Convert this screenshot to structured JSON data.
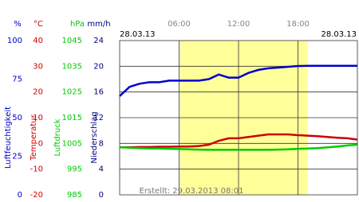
{
  "chart_data": {
    "type": "line",
    "date_left": "28.03.13",
    "date_right": "28.03.13",
    "footer": "Erstellt: 29.03.2013 08:01",
    "x": [
      0,
      1,
      2,
      3,
      4,
      5,
      6,
      7,
      8,
      9,
      10,
      11,
      12,
      13,
      14,
      15,
      16,
      17,
      18,
      19,
      20,
      21,
      22,
      23,
      24
    ],
    "xlim": [
      0,
      24
    ],
    "xticks": [
      {
        "value": 6,
        "label": "06:00"
      },
      {
        "value": 12,
        "label": "12:00"
      },
      {
        "value": 18,
        "label": "18:00"
      }
    ],
    "daylight": [
      6.1,
      19.0
    ],
    "grid": true,
    "axes": [
      {
        "unit": "%",
        "label": "Luftfeuchtigkeit",
        "color": "#0000cc",
        "ylim": [
          0,
          100
        ],
        "yticks": [
          0,
          25,
          50,
          75,
          100
        ]
      },
      {
        "unit": "°C",
        "label": "Temperatur",
        "color": "#cc0000",
        "ylim": [
          -20,
          40
        ],
        "yticks": [
          -20,
          -10,
          0,
          10,
          20,
          30,
          40
        ]
      },
      {
        "unit": "hPa",
        "label": "Luftdruck",
        "color": "#00cc00",
        "ylim": [
          985,
          1045
        ],
        "yticks": [
          985,
          995,
          1005,
          1015,
          1025,
          1035,
          1045
        ]
      },
      {
        "unit": "mm/h",
        "label": "Niederschlag",
        "color": "#000080",
        "ylim": [
          0,
          24
        ],
        "yticks": [
          0,
          4,
          8,
          12,
          16,
          20,
          24
        ]
      }
    ],
    "series": [
      {
        "name": "Luftfeuchtigkeit",
        "axis": 0,
        "color": "#0000cc",
        "values": [
          64,
          70,
          72,
          73,
          73,
          74,
          74,
          74,
          74,
          75,
          78,
          76,
          76,
          79,
          81,
          82,
          82.5,
          83,
          83.5,
          83.6,
          83.6,
          83.6,
          83.6,
          83.6,
          83.6
        ]
      },
      {
        "name": "Temperatur",
        "axis": 1,
        "color": "#cc0000",
        "values": [
          -1.5,
          -1.5,
          -1.4,
          -1.4,
          -1.3,
          -1.3,
          -1.2,
          -1.2,
          -1,
          -0.5,
          1,
          2,
          2,
          2.5,
          3,
          3.5,
          3.5,
          3.5,
          3.2,
          3,
          2.8,
          2.5,
          2.2,
          2,
          1.5
        ]
      },
      {
        "name": "Luftdruck",
        "axis": 2,
        "color": "#00cc00",
        "values": [
          1003.5,
          1003.3,
          1003.2,
          1003,
          1003,
          1002.9,
          1002.8,
          1002.7,
          1002.6,
          1002.5,
          1002.5,
          1002.5,
          1002.5,
          1002.5,
          1002.5,
          1002.5,
          1002.6,
          1002.7,
          1002.9,
          1003,
          1003.2,
          1003.5,
          1003.8,
          1004.2,
          1004.5
        ]
      }
    ]
  }
}
